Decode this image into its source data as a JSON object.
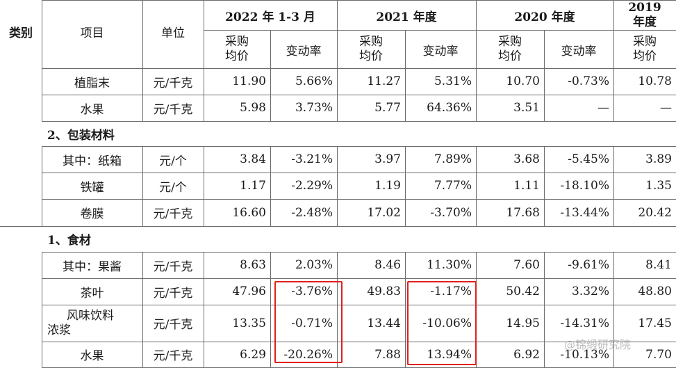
{
  "header": {
    "category": "类别",
    "item": "项目",
    "unit": "单位",
    "periods": [
      "2022 年 1-3 月",
      "2021 年度",
      "2020 年度"
    ],
    "period_2019_line1": "2019",
    "period_2019_line2": "年度",
    "price_l1": "采购",
    "price_l2": "均价",
    "change": "变动率"
  },
  "rows": [
    {
      "item": "植脂末",
      "unit": "元/千克",
      "v": [
        "11.90",
        "5.66%",
        "11.27",
        "5.31%",
        "10.70",
        "-0.73%",
        "10.78"
      ]
    },
    {
      "item": "水果",
      "unit": "元/千克",
      "v": [
        "5.98",
        "3.73%",
        "5.77",
        "64.36%",
        "3.51",
        "—",
        "—"
      ]
    },
    {
      "section": "2、包装材料"
    },
    {
      "item": "其中：纸箱",
      "unit": "元/个",
      "v": [
        "3.84",
        "-3.21%",
        "3.97",
        "7.89%",
        "3.68",
        "-5.45%",
        "3.89"
      ]
    },
    {
      "item": "铁罐",
      "unit": "元/个",
      "v": [
        "1.17",
        "-2.29%",
        "1.19",
        "7.77%",
        "1.11",
        "-18.10%",
        "1.35"
      ]
    },
    {
      "item": "卷膜",
      "unit": "元/千克",
      "v": [
        "16.60",
        "-2.48%",
        "17.02",
        "-3.70%",
        "17.68",
        "-13.44%",
        "20.42"
      ]
    },
    {
      "section": "1、食材"
    },
    {
      "item": "其中：果酱",
      "unit": "元/千克",
      "v": [
        "8.63",
        "2.03%",
        "8.46",
        "11.30%",
        "7.60",
        "-9.61%",
        "8.41"
      ]
    },
    {
      "item": "茶叶",
      "unit": "元/千克",
      "v": [
        "47.96",
        "-3.76%",
        "49.83",
        "-1.17%",
        "50.42",
        "3.32%",
        "48.80"
      ]
    },
    {
      "item_l1": "风味饮料",
      "item_l2": "浓浆",
      "unit": "元/千克",
      "v": [
        "13.35",
        "-0.71%",
        "13.44",
        "-10.06%",
        "14.95",
        "-14.31%",
        "17.45"
      ]
    },
    {
      "item": "水果",
      "unit": "元/千克",
      "v": [
        "6.29",
        "-20.26%",
        "7.88",
        "13.94%",
        "6.92",
        "-10.13%",
        "7.70"
      ]
    }
  ],
  "watermark": "@锦缎研究院",
  "highlight_color": "#e0201b"
}
